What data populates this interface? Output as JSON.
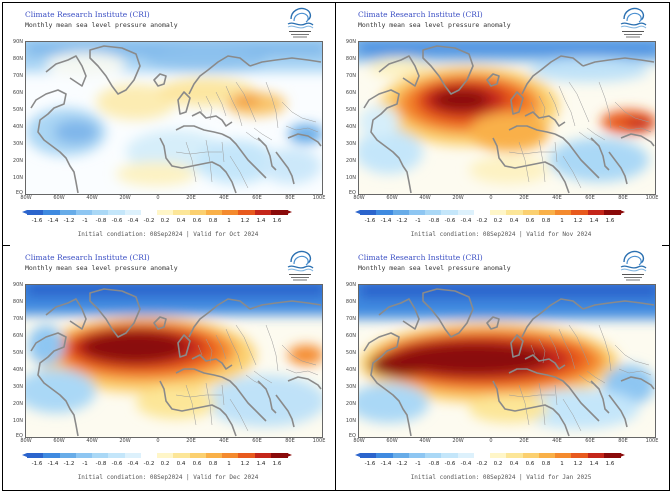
{
  "institute": "Climate Research Institute (CRI)",
  "subtitle": "Monthly mean sea level pressure anomaly",
  "y_labels": [
    "90N",
    "80N",
    "70N",
    "60N",
    "50N",
    "40N",
    "30N",
    "20N",
    "10N",
    "EQ"
  ],
  "x_labels": [
    "80W",
    "60W",
    "40W",
    "20W",
    "0",
    "20E",
    "40E",
    "60E",
    "80E",
    "100E"
  ],
  "colorbar": {
    "labels": [
      "-1.6",
      "-1.4",
      "-1.2",
      "-1",
      "-0.8",
      "-0.6",
      "-0.4",
      "-0.2",
      "0.2",
      "0.4",
      "0.6",
      "0.8",
      "1",
      "1.2",
      "1.4",
      "1.6"
    ],
    "colors": [
      "#2b64cc",
      "#3f8ae0",
      "#68ace8",
      "#8ec6f2",
      "#aad8f6",
      "#c4e6fa",
      "#ddf1fc",
      "#ffffff",
      "#fff6c8",
      "#fce698",
      "#fbd070",
      "#f9b048",
      "#f48a2e",
      "#e85a1e",
      "#c4261a",
      "#8a0a0a"
    ]
  },
  "panels": [
    {
      "footer": "Initial condiation: 08Sep2024 | Valid for Oct 2024"
    },
    {
      "footer": "Initial condiation: 08Sep2024 | Valid for Nov 2024"
    },
    {
      "footer": "Initial condiation: 08Sep2024 | Valid for Dec 2024"
    },
    {
      "footer": "Initial condiation: 08Sep2024 | Valid for Jan 2025"
    }
  ]
}
